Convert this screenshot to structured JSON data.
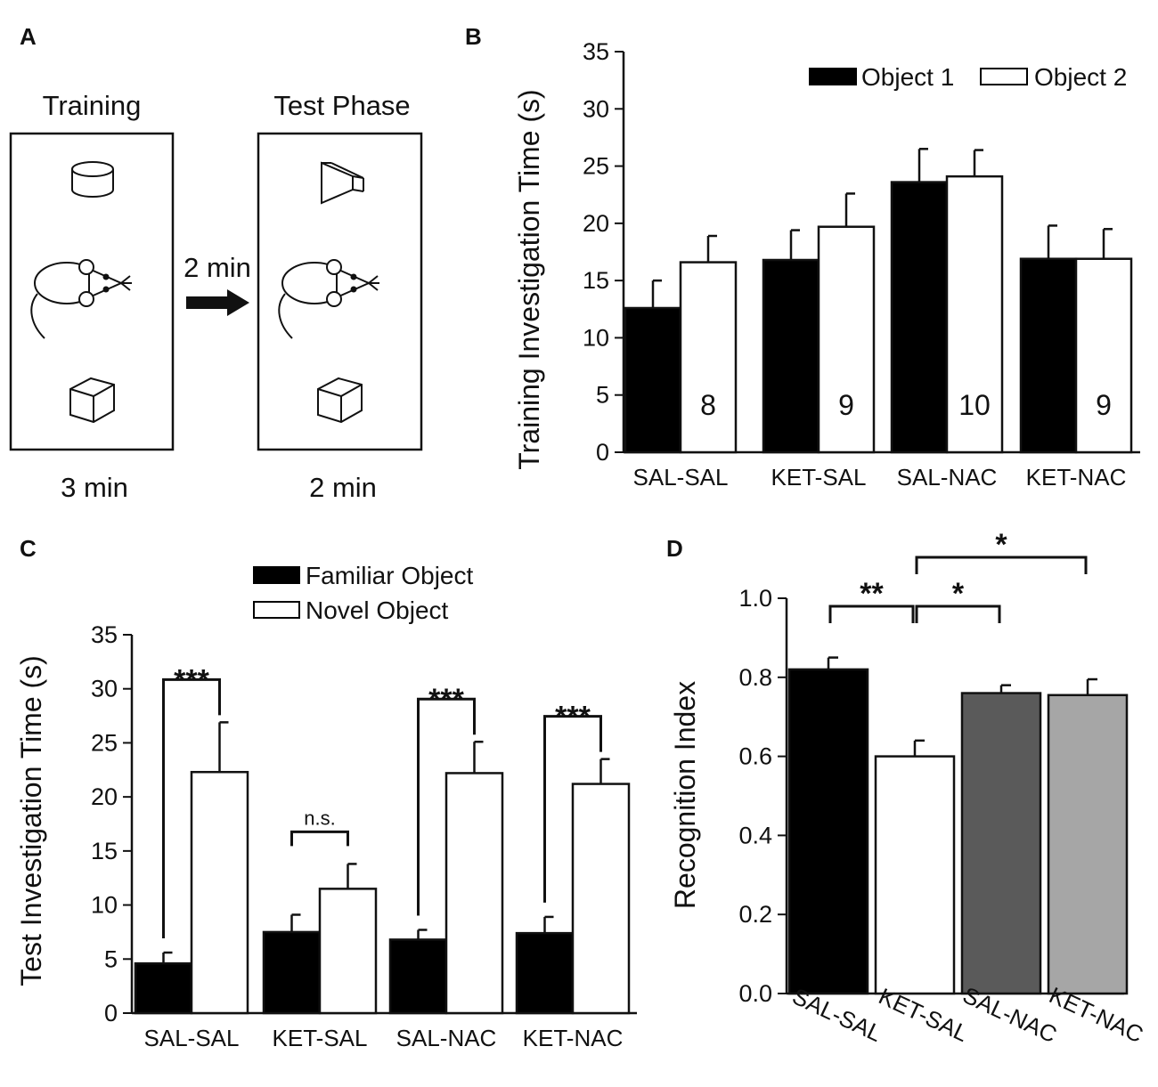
{
  "panels": {
    "A": {
      "label": "A",
      "training_title": "Training",
      "test_title": "Test Phase",
      "interval_label": "2 min",
      "training_duration": "3 min",
      "test_duration": "2 min",
      "icons": [
        "cylinder-object-icon",
        "cube-object-icon",
        "mouse-icon",
        "triangular-prism-object-icon",
        "arrow-right-icon"
      ]
    },
    "B": {
      "label": "B"
    },
    "C": {
      "label": "C"
    },
    "D": {
      "label": "D"
    }
  },
  "chart_data": [
    {
      "id": "B",
      "type": "bar",
      "title": "",
      "ylabel": "Training Investigation Time (s)",
      "xlabel": "",
      "categories": [
        "SAL-SAL",
        "KET-SAL",
        "SAL-NAC",
        "KET-NAC"
      ],
      "series": [
        {
          "name": "Object 1",
          "color": "#000000",
          "values": [
            12.6,
            16.8,
            23.6,
            16.9
          ],
          "errors": [
            2.4,
            2.6,
            2.9,
            2.9
          ]
        },
        {
          "name": "Object 2",
          "color": "#ffffff",
          "values": [
            16.6,
            19.7,
            24.1,
            16.9
          ],
          "errors": [
            2.3,
            2.9,
            2.3,
            2.6
          ]
        }
      ],
      "n_labels": [
        "8",
        "9",
        "10",
        "9"
      ],
      "ylim": [
        0,
        35
      ],
      "yticks": [
        0,
        5,
        10,
        15,
        20,
        25,
        30,
        35
      ],
      "legend": "top-right"
    },
    {
      "id": "C",
      "type": "bar",
      "title": "",
      "ylabel": "Test Investigation Time (s)",
      "xlabel": "",
      "categories": [
        "SAL-SAL",
        "KET-SAL",
        "SAL-NAC",
        "KET-NAC"
      ],
      "series": [
        {
          "name": "Familiar Object",
          "color": "#000000",
          "values": [
            4.6,
            7.5,
            6.8,
            7.4
          ],
          "errors": [
            1.0,
            1.6,
            0.9,
            1.5
          ]
        },
        {
          "name": "Novel Object",
          "color": "#ffffff",
          "values": [
            22.3,
            11.5,
            22.2,
            21.2
          ],
          "errors": [
            4.6,
            2.3,
            2.9,
            2.3
          ]
        }
      ],
      "significance": [
        "***",
        "n.s.",
        "***",
        "***"
      ],
      "ylim": [
        0,
        35
      ],
      "yticks": [
        0,
        5,
        10,
        15,
        20,
        25,
        30,
        35
      ],
      "legend": "top"
    },
    {
      "id": "D",
      "type": "bar",
      "title": "",
      "ylabel": "Recognition Index",
      "xlabel": "",
      "categories": [
        "SAL-SAL",
        "KET-SAL",
        "SAL-NAC",
        "KET-NAC"
      ],
      "values": [
        0.82,
        0.6,
        0.76,
        0.755
      ],
      "errors": [
        0.03,
        0.04,
        0.02,
        0.04
      ],
      "colors": [
        "#000000",
        "#ffffff",
        "#5a5a5a",
        "#a6a6a6"
      ],
      "ylim": [
        0,
        1.0
      ],
      "yticks": [
        "0.0",
        "0.2",
        "0.4",
        "0.6",
        "0.8",
        "1.0"
      ],
      "comparisons": [
        {
          "from": "SAL-SAL",
          "to": "KET-SAL",
          "label": "**"
        },
        {
          "from": "KET-SAL",
          "to": "SAL-NAC",
          "label": "*"
        },
        {
          "from": "KET-SAL",
          "to": "KET-NAC",
          "label": "*"
        }
      ]
    }
  ]
}
